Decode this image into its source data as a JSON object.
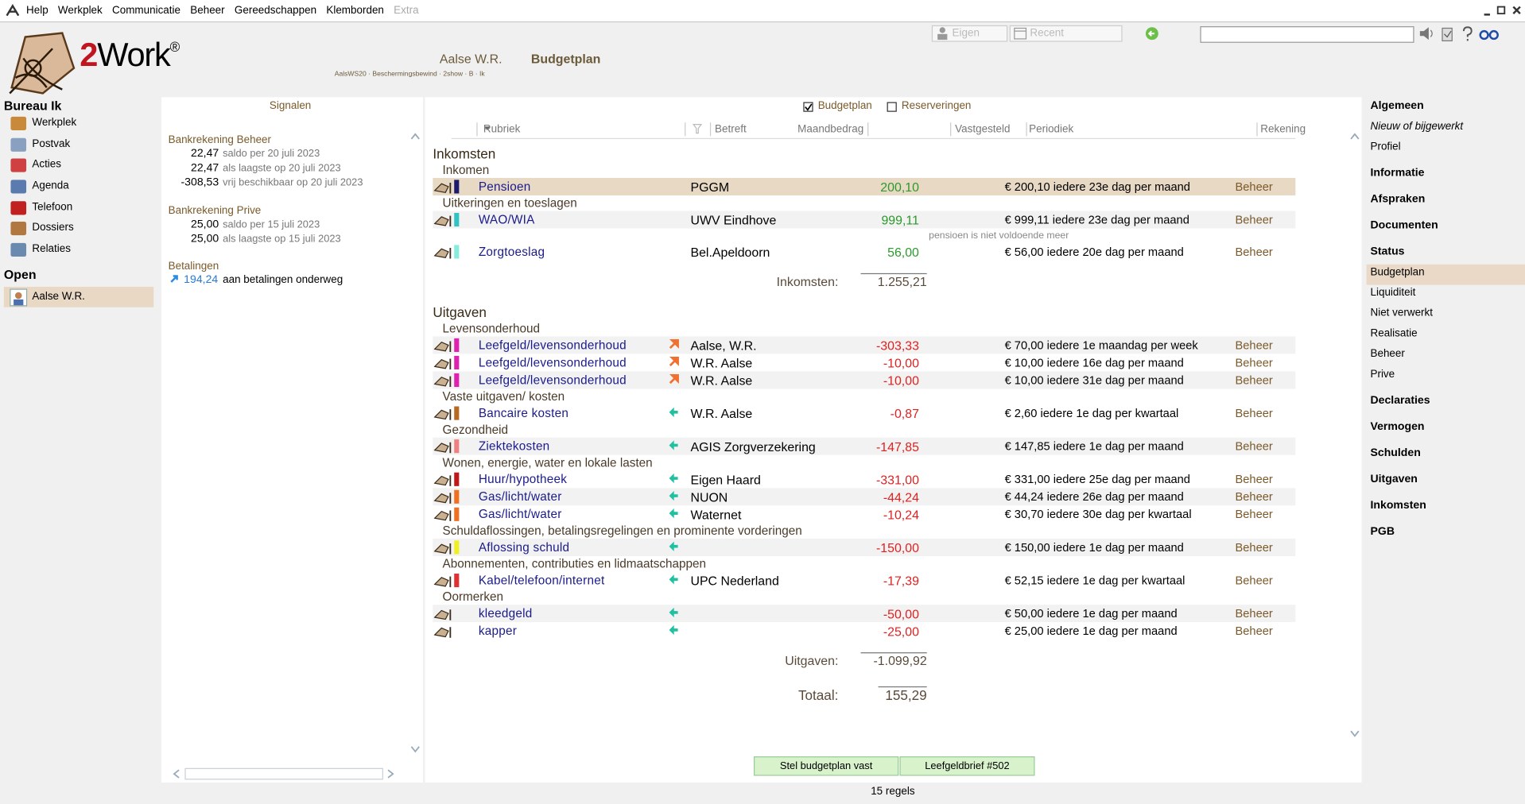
{
  "menu": [
    "Help",
    "Werkplek",
    "Communicatie",
    "Beheer",
    "Gereedschappen",
    "Klemborden",
    "Extra"
  ],
  "toolbar": {
    "eigen": "Eigen",
    "recent": "Recent"
  },
  "logo": {
    "prefix": "2",
    "name": "Work",
    "mark": "®"
  },
  "header": {
    "client": "Aalse W.R.",
    "details": "AalsWS20 · Beschermingsbewind · 2show · B · Ik",
    "page": "Budgetplan"
  },
  "left_nav": {
    "title": "Bureau Ik",
    "items": [
      "Werkplek",
      "Postvak",
      "Acties",
      "Agenda",
      "Telefoon",
      "Dossiers",
      "Relaties"
    ],
    "open_title": "Open",
    "open_items": [
      "Aalse W.R."
    ]
  },
  "signals": {
    "title": "Signalen",
    "accounts": [
      {
        "name": "Bankrekening Beheer",
        "rows": [
          {
            "amount": "22,47",
            "text": "saldo per 20 juli 2023"
          },
          {
            "amount": "22,47",
            "text": "als laagste op 20 juli 2023"
          },
          {
            "amount": "-308,53",
            "text": "vrij beschikbaar op 20 juli 2023"
          }
        ]
      },
      {
        "name": "Bankrekening Prive",
        "rows": [
          {
            "amount": "25,00",
            "text": "saldo per 15 juli 2023"
          },
          {
            "amount": "25,00",
            "text": "als laagste op 15 juli 2023"
          }
        ]
      }
    ],
    "payments": {
      "title": "Betalingen",
      "amount": "194,24",
      "text": "aan betalingen onderweg"
    }
  },
  "budget": {
    "filters": [
      {
        "label": "Budgetplan",
        "checked": true
      },
      {
        "label": "Reserveringen",
        "checked": false
      }
    ],
    "columns": [
      "Rubriek",
      "Betreft",
      "Maandbedrag",
      "Vastgesteld",
      "Periodiek",
      "Rekening"
    ],
    "sections": [
      {
        "title": "Inkomsten",
        "amount_color": "#2a9a2a",
        "total_label": "Inkomsten:",
        "total": "1.255,21",
        "groups": [
          {
            "title": "Inkomen",
            "rows": [
              {
                "rubriek": "Pensioen",
                "color": "#1a1a6e",
                "betreft": "PGGM",
                "amount": "200,10",
                "schedule": "€ 200,10 iedere 23e dag per maand",
                "account": "Beheer",
                "selected": true
              }
            ]
          },
          {
            "title": "Uitkeringen en toeslagen",
            "rows": [
              {
                "rubriek": "WAO/WIA",
                "color": "#2ec4c4",
                "betreft": "UWV Eindhove",
                "amount": "999,11",
                "schedule": "€ 999,11 iedere 23e dag per maand",
                "account": "Beheer",
                "note": "pensioen is niet voldoende meer"
              },
              {
                "rubriek": "Zorgtoeslag",
                "color": "#86ecdc",
                "betreft": "Bel.Apeldoorn",
                "amount": "56,00",
                "schedule": "€ 56,00 iedere 20e dag per maand",
                "account": "Beheer"
              }
            ]
          }
        ]
      },
      {
        "title": "Uitgaven",
        "amount_color": "#e02020",
        "total_label": "Uitgaven:",
        "total": "-1.099,92",
        "groups": [
          {
            "title": "Levensonderhoud",
            "rows": [
              {
                "rubriek": "Leefgeld/levensonderhoud",
                "color": "#e020b0",
                "arrow": "up-right",
                "betreft": "Aalse, W.R.",
                "amount": "-303,33",
                "schedule": "€ 70,00 iedere 1e maandag per week",
                "account": "Beheer"
              },
              {
                "rubriek": "Leefgeld/levensonderhoud",
                "color": "#e020b0",
                "arrow": "up-right",
                "betreft": "W.R. Aalse",
                "amount": "-10,00",
                "schedule": "€ 10,00 iedere 16e dag per maand",
                "account": "Beheer"
              },
              {
                "rubriek": "Leefgeld/levensonderhoud",
                "color": "#e020b0",
                "arrow": "up-right",
                "betreft": "W.R. Aalse",
                "amount": "-10,00",
                "schedule": "€ 10,00 iedere 31e dag per maand",
                "account": "Beheer"
              }
            ]
          },
          {
            "title": "Vaste uitgaven/ kosten",
            "rows": [
              {
                "rubriek": "Bancaire kosten",
                "color": "#b86a20",
                "arrow": "left",
                "betreft": "W.R. Aalse",
                "amount": "-0,87",
                "schedule": "€ 2,60 iedere 1e dag per kwartaal",
                "account": "Beheer"
              }
            ]
          },
          {
            "title": "Gezondheid",
            "rows": [
              {
                "rubriek": "Ziektekosten",
                "color": "#f08080",
                "arrow": "left",
                "betreft": "AGIS Zorgverzekering",
                "amount": "-147,85",
                "schedule": "€ 147,85 iedere 1e dag per maand",
                "account": "Beheer"
              }
            ]
          },
          {
            "title": "Wonen, energie, water en lokale lasten",
            "rows": [
              {
                "rubriek": "Huur/hypotheek",
                "color": "#c01818",
                "arrow": "left",
                "betreft": "Eigen Haard",
                "amount": "-331,00",
                "schedule": "€ 331,00 iedere 25e dag per maand",
                "account": "Beheer"
              },
              {
                "rubriek": "Gas/licht/water",
                "color": "#f07020",
                "arrow": "left",
                "betreft": "NUON",
                "amount": "-44,24",
                "schedule": "€ 44,24 iedere 26e dag per maand",
                "account": "Beheer"
              },
              {
                "rubriek": "Gas/licht/water",
                "color": "#f07020",
                "arrow": "left",
                "betreft": "Waternet",
                "amount": "-10,24",
                "schedule": "€ 30,70 iedere 30e dag per kwartaal",
                "account": "Beheer"
              }
            ]
          },
          {
            "title": "Schuldaflossingen, betalingsregelingen en prominente vorderingen",
            "rows": [
              {
                "rubriek": "Aflossing schuld",
                "color": "#f0f020",
                "arrow": "left",
                "amount": "-150,00",
                "schedule": "€ 150,00 iedere 1e dag per maand",
                "account": "Beheer"
              }
            ]
          },
          {
            "title": "Abonnementen, contributies en lidmaatschappen",
            "rows": [
              {
                "rubriek": "Kabel/telefoon/internet",
                "color": "#e03030",
                "arrow": "left",
                "betreft": "UPC Nederland",
                "amount": "-17,39",
                "schedule": "€ 52,15 iedere 1e dag per kwartaal",
                "account": "Beheer"
              }
            ]
          },
          {
            "title": "Oormerken",
            "rows": [
              {
                "rubriek": "kleedgeld",
                "arrow": "left",
                "amount": "-50,00",
                "schedule": "€ 50,00 iedere 1e dag per maand",
                "account": "Beheer"
              },
              {
                "rubriek": "kapper",
                "arrow": "left",
                "amount": "-25,00",
                "schedule": "€ 25,00 iedere 1e dag per maand",
                "account": "Beheer"
              }
            ]
          }
        ]
      }
    ],
    "grand_total_label": "Totaal:",
    "grand_total": "155,29",
    "buttons": [
      "Stel budgetplan vast",
      "Leefgeldbrief #502"
    ],
    "status": "15 regels"
  },
  "right_nav": [
    {
      "label": "Algemeen",
      "style": "heading"
    },
    {
      "label": "Nieuw of bijgewerkt",
      "style": "italic"
    },
    {
      "label": "Profiel",
      "style": "item"
    },
    {
      "label": "Informatie",
      "style": "heading"
    },
    {
      "label": "Afspraken",
      "style": "heading"
    },
    {
      "label": "Documenten",
      "style": "heading"
    },
    {
      "label": "Status",
      "style": "heading"
    },
    {
      "label": "Budgetplan",
      "style": "selected"
    },
    {
      "label": "Liquiditeit",
      "style": "item"
    },
    {
      "label": "Niet verwerkt",
      "style": "item"
    },
    {
      "label": "Realisatie",
      "style": "item"
    },
    {
      "label": "Beheer",
      "style": "item"
    },
    {
      "label": "Prive",
      "style": "item"
    },
    {
      "label": "Declaraties",
      "style": "heading"
    },
    {
      "label": "Vermogen",
      "style": "heading"
    },
    {
      "label": "Schulden",
      "style": "heading"
    },
    {
      "label": "Uitgaven",
      "style": "heading"
    },
    {
      "label": "Inkomsten",
      "style": "heading"
    },
    {
      "label": "PGB",
      "style": "heading"
    }
  ]
}
